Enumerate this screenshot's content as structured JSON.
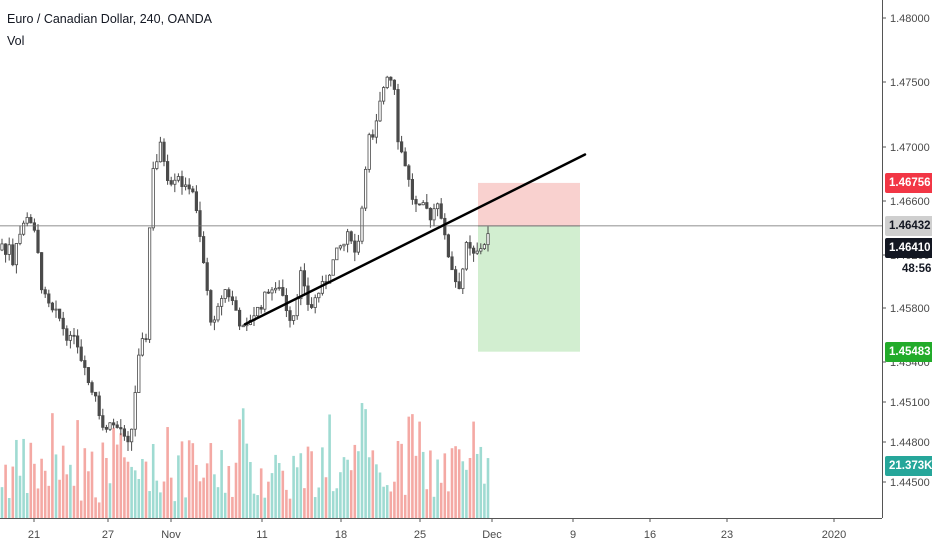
{
  "legend": {
    "title": "Euro / Canadian Dollar, 240, OANDA",
    "volume_label": "Vol"
  },
  "badges": {
    "stop_price": "1.46756",
    "last_price": "1.46432",
    "bid_price": "1.46410",
    "countdown": "48:56",
    "target_price": "1.45483",
    "volume": "21.373K"
  },
  "colors": {
    "up": "#4a4a4a",
    "down": "#4a4a4a",
    "vol_up": "#9fdbd2",
    "vol_down": "#f4a9a4",
    "stop_zone": "#f8c9c7",
    "target_zone": "#cdeccb",
    "stop_badge": "#f23645",
    "target_badge": "#22ab2a",
    "volume_badge": "#26a69a",
    "price_badge": "#131722"
  },
  "chart_data": {
    "type": "candlestick",
    "symbol": "EURCAD",
    "interval": "240",
    "ylim": [
      1.4434,
      1.4813
    ],
    "y_ticks": [
      "1.48000",
      "1.47500",
      "1.47000",
      "1.46600",
      "1.46200",
      "1.45800",
      "1.45400",
      "1.45100",
      "1.44800",
      "1.44500"
    ],
    "x_ticks": [
      "21",
      "27",
      "Nov",
      "11",
      "18",
      "25",
      "Dec",
      "9",
      "16",
      "23",
      "2020"
    ],
    "price_path": [
      [
        0,
        1.4625
      ],
      [
        3,
        1.4632
      ],
      [
        6,
        1.462
      ],
      [
        9,
        1.4632
      ],
      [
        12,
        1.4612
      ],
      [
        16,
        1.4632
      ],
      [
        22,
        1.464
      ],
      [
        27,
        1.4652
      ],
      [
        32,
        1.4645
      ],
      [
        37,
        1.4628
      ],
      [
        41,
        1.46
      ],
      [
        46,
        1.4586
      ],
      [
        52,
        1.4578
      ],
      [
        58,
        1.4576
      ],
      [
        64,
        1.4565
      ],
      [
        70,
        1.4556
      ],
      [
        75,
        1.4565
      ],
      [
        80,
        1.4545
      ],
      [
        85,
        1.454
      ],
      [
        90,
        1.4518
      ],
      [
        95,
        1.452
      ],
      [
        100,
        1.45
      ],
      [
        105,
        1.4485
      ],
      [
        110,
        1.4498
      ],
      [
        115,
        1.449
      ],
      [
        120,
        1.4492
      ],
      [
        125,
        1.448
      ],
      [
        129,
        1.4476
      ],
      [
        133,
        1.4498
      ],
      [
        137,
        1.4535
      ],
      [
        141,
        1.4552
      ],
      [
        146,
        1.456
      ],
      [
        149,
        1.463
      ],
      [
        152,
        1.4688
      ],
      [
        156,
        1.469
      ],
      [
        161,
        1.4705
      ],
      [
        165,
        1.469
      ],
      [
        169,
        1.4676
      ],
      [
        174,
        1.468
      ],
      [
        178,
        1.4683
      ],
      [
        182,
        1.4675
      ],
      [
        186,
        1.467
      ],
      [
        190,
        1.4675
      ],
      [
        194,
        1.4668
      ],
      [
        198,
        1.4642
      ],
      [
        202,
        1.4625
      ],
      [
        206,
        1.46
      ],
      [
        210,
        1.4575
      ],
      [
        215,
        1.4568
      ],
      [
        220,
        1.4587
      ],
      [
        225,
        1.4595
      ],
      [
        230,
        1.459
      ],
      [
        235,
        1.4582
      ],
      [
        240,
        1.457
      ],
      [
        245,
        1.4562
      ],
      [
        250,
        1.4573
      ],
      [
        255,
        1.4578
      ],
      [
        260,
        1.4582
      ],
      [
        265,
        1.459
      ],
      [
        270,
        1.4598
      ],
      [
        275,
        1.4592
      ],
      [
        280,
        1.46
      ],
      [
        285,
        1.4584
      ],
      [
        290,
        1.4575
      ],
      [
        295,
        1.4578
      ],
      [
        300,
        1.461
      ],
      [
        305,
        1.4592
      ],
      [
        310,
        1.458
      ],
      [
        315,
        1.4588
      ],
      [
        320,
        1.4595
      ],
      [
        325,
        1.46
      ],
      [
        330,
        1.461
      ],
      [
        335,
        1.462
      ],
      [
        340,
        1.4627
      ],
      [
        345,
        1.463
      ],
      [
        350,
        1.464
      ],
      [
        355,
        1.4622
      ],
      [
        360,
        1.464
      ],
      [
        364,
        1.4675
      ],
      [
        368,
        1.4712
      ],
      [
        372,
        1.4705
      ],
      [
        376,
        1.4718
      ],
      [
        380,
        1.4735
      ],
      [
        384,
        1.475
      ],
      [
        388,
        1.476
      ],
      [
        392,
        1.4752
      ],
      [
        395,
        1.4748
      ],
      [
        398,
        1.471
      ],
      [
        401,
        1.47
      ],
      [
        404,
        1.4695
      ],
      [
        408,
        1.468
      ],
      [
        412,
        1.4665
      ],
      [
        416,
        1.4658
      ],
      [
        420,
        1.4655
      ],
      [
        425,
        1.4658
      ],
      [
        430,
        1.465
      ],
      [
        435,
        1.4658
      ],
      [
        439,
        1.4665
      ],
      [
        443,
        1.464
      ],
      [
        447,
        1.4625
      ],
      [
        451,
        1.4615
      ],
      [
        455,
        1.4603
      ],
      [
        459,
        1.4598
      ],
      [
        463,
        1.4612
      ],
      [
        467,
        1.463
      ],
      [
        471,
        1.4622
      ],
      [
        475,
        1.462
      ],
      [
        479,
        1.4625
      ],
      [
        483,
        1.463
      ],
      [
        487,
        1.4632
      ],
      [
        490,
        1.4643
      ]
    ],
    "position": {
      "direction": "short",
      "entry": 1.46432,
      "stop": 1.46756,
      "target": 1.45483
    },
    "trendline": {
      "from": [
        245,
        1.4569
      ],
      "to": [
        585,
        1.4697
      ]
    },
    "last_price_line": 1.46432
  }
}
